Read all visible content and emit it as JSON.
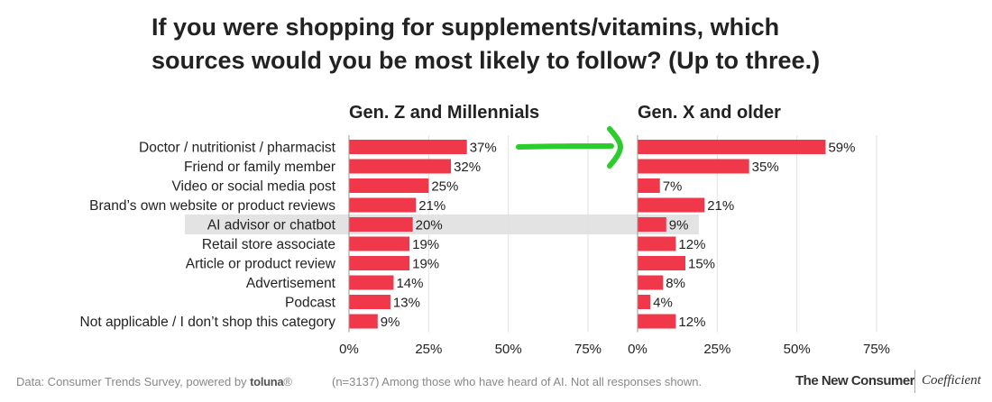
{
  "title_line1": "If you were shopping for supplements/vitamins, which",
  "title_line2": "sources would you be most likely to follow? (Up to three.)",
  "chart_data": {
    "type": "bar",
    "orientation": "horizontal",
    "categories": [
      "Doctor / nutritionist / pharmacist",
      "Friend or family member",
      "Video or social media post",
      "Brand’s own website or product reviews",
      "AI advisor or chatbot",
      "Retail store associate",
      "Article or product review",
      "Advertisement",
      "Podcast",
      "Not applicable / I don’t shop this category"
    ],
    "highlighted_category": "AI advisor or chatbot",
    "series": [
      {
        "name": "Gen. Z and Millennials",
        "values": [
          37,
          32,
          25,
          21,
          20,
          19,
          19,
          14,
          13,
          9
        ]
      },
      {
        "name": "Gen. X and older",
        "values": [
          59,
          35,
          7,
          21,
          9,
          12,
          15,
          8,
          4,
          12
        ]
      }
    ],
    "value_suffix": "%",
    "xlim": [
      0,
      75
    ],
    "xticks": [
      0,
      25,
      50,
      75
    ],
    "xtick_labels": [
      "0%",
      "25%",
      "50%",
      "75%"
    ],
    "grid": true,
    "bar_color": "#f0384a",
    "highlight_color": "#e3e3e3",
    "arrow_color": "#2ccc2c"
  },
  "footer": {
    "source_prefix": "Data: Consumer Trends Survey, powered by ",
    "source_brand": "toluna",
    "source_brand_mark": "®",
    "note": "(n=3137) Among those who have heard of AI. Not all responses shown."
  },
  "logos": {
    "primary": "The New Consumer",
    "secondary": "Coefficient"
  }
}
